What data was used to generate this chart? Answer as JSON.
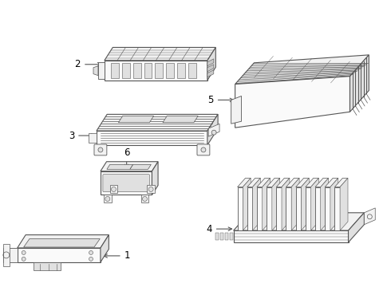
{
  "background_color": "#ffffff",
  "line_color": "#555555",
  "label_color": "#000000",
  "fig_width": 4.9,
  "fig_height": 3.6,
  "dpi": 100
}
